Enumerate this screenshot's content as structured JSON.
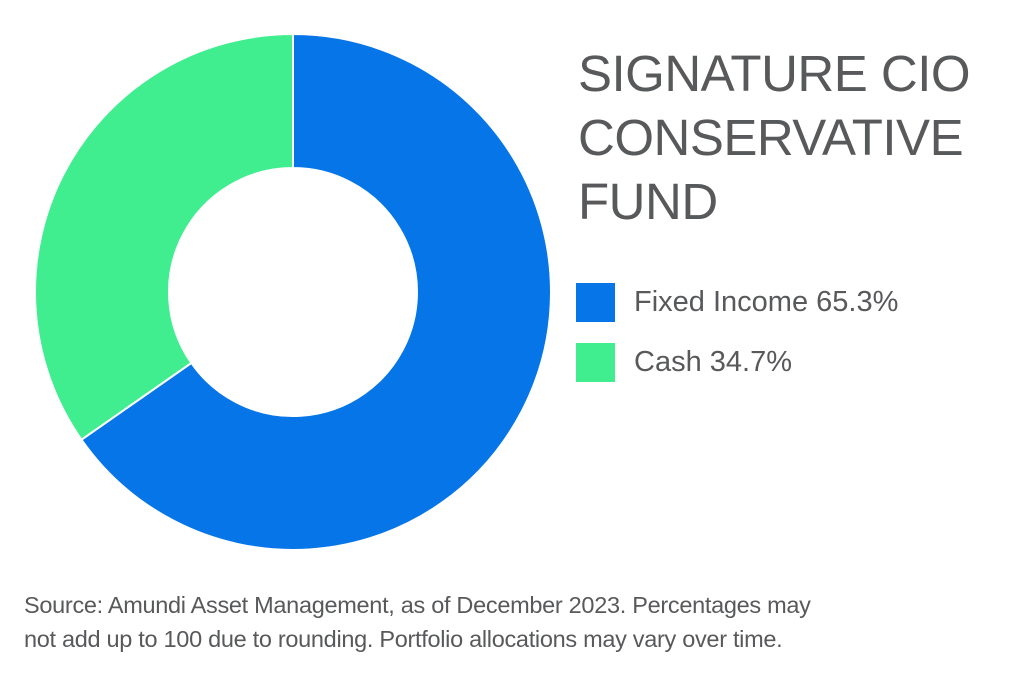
{
  "title_lines": [
    "SIGNATURE CIO",
    "CONSERVATIVE",
    "FUND"
  ],
  "legend": [
    {
      "label": "Fixed Income 65.3%",
      "color": "#0675e8"
    },
    {
      "label": "Cash 34.7%",
      "color": "#40ee90"
    }
  ],
  "footnote_lines": [
    "Source: Amundi Asset Management, as of December 2023. Percentages may",
    "not add up to 100 due to rounding. Portfolio allocations may vary over time."
  ],
  "chart_data": {
    "type": "pie",
    "variant": "donut",
    "title": "SIGNATURE CIO CONSERVATIVE FUND",
    "categories": [
      "Fixed Income",
      "Cash"
    ],
    "values": [
      65.3,
      34.7
    ],
    "unit": "%",
    "colors": [
      "#0675e8",
      "#40ee90"
    ],
    "start_angle_deg": 0,
    "direction": "clockwise",
    "legend_position": "right",
    "footnote": "Source: Amundi Asset Management, as of December 2023. Percentages may not add up to 100 due to rounding. Portfolio allocations may vary over time."
  }
}
